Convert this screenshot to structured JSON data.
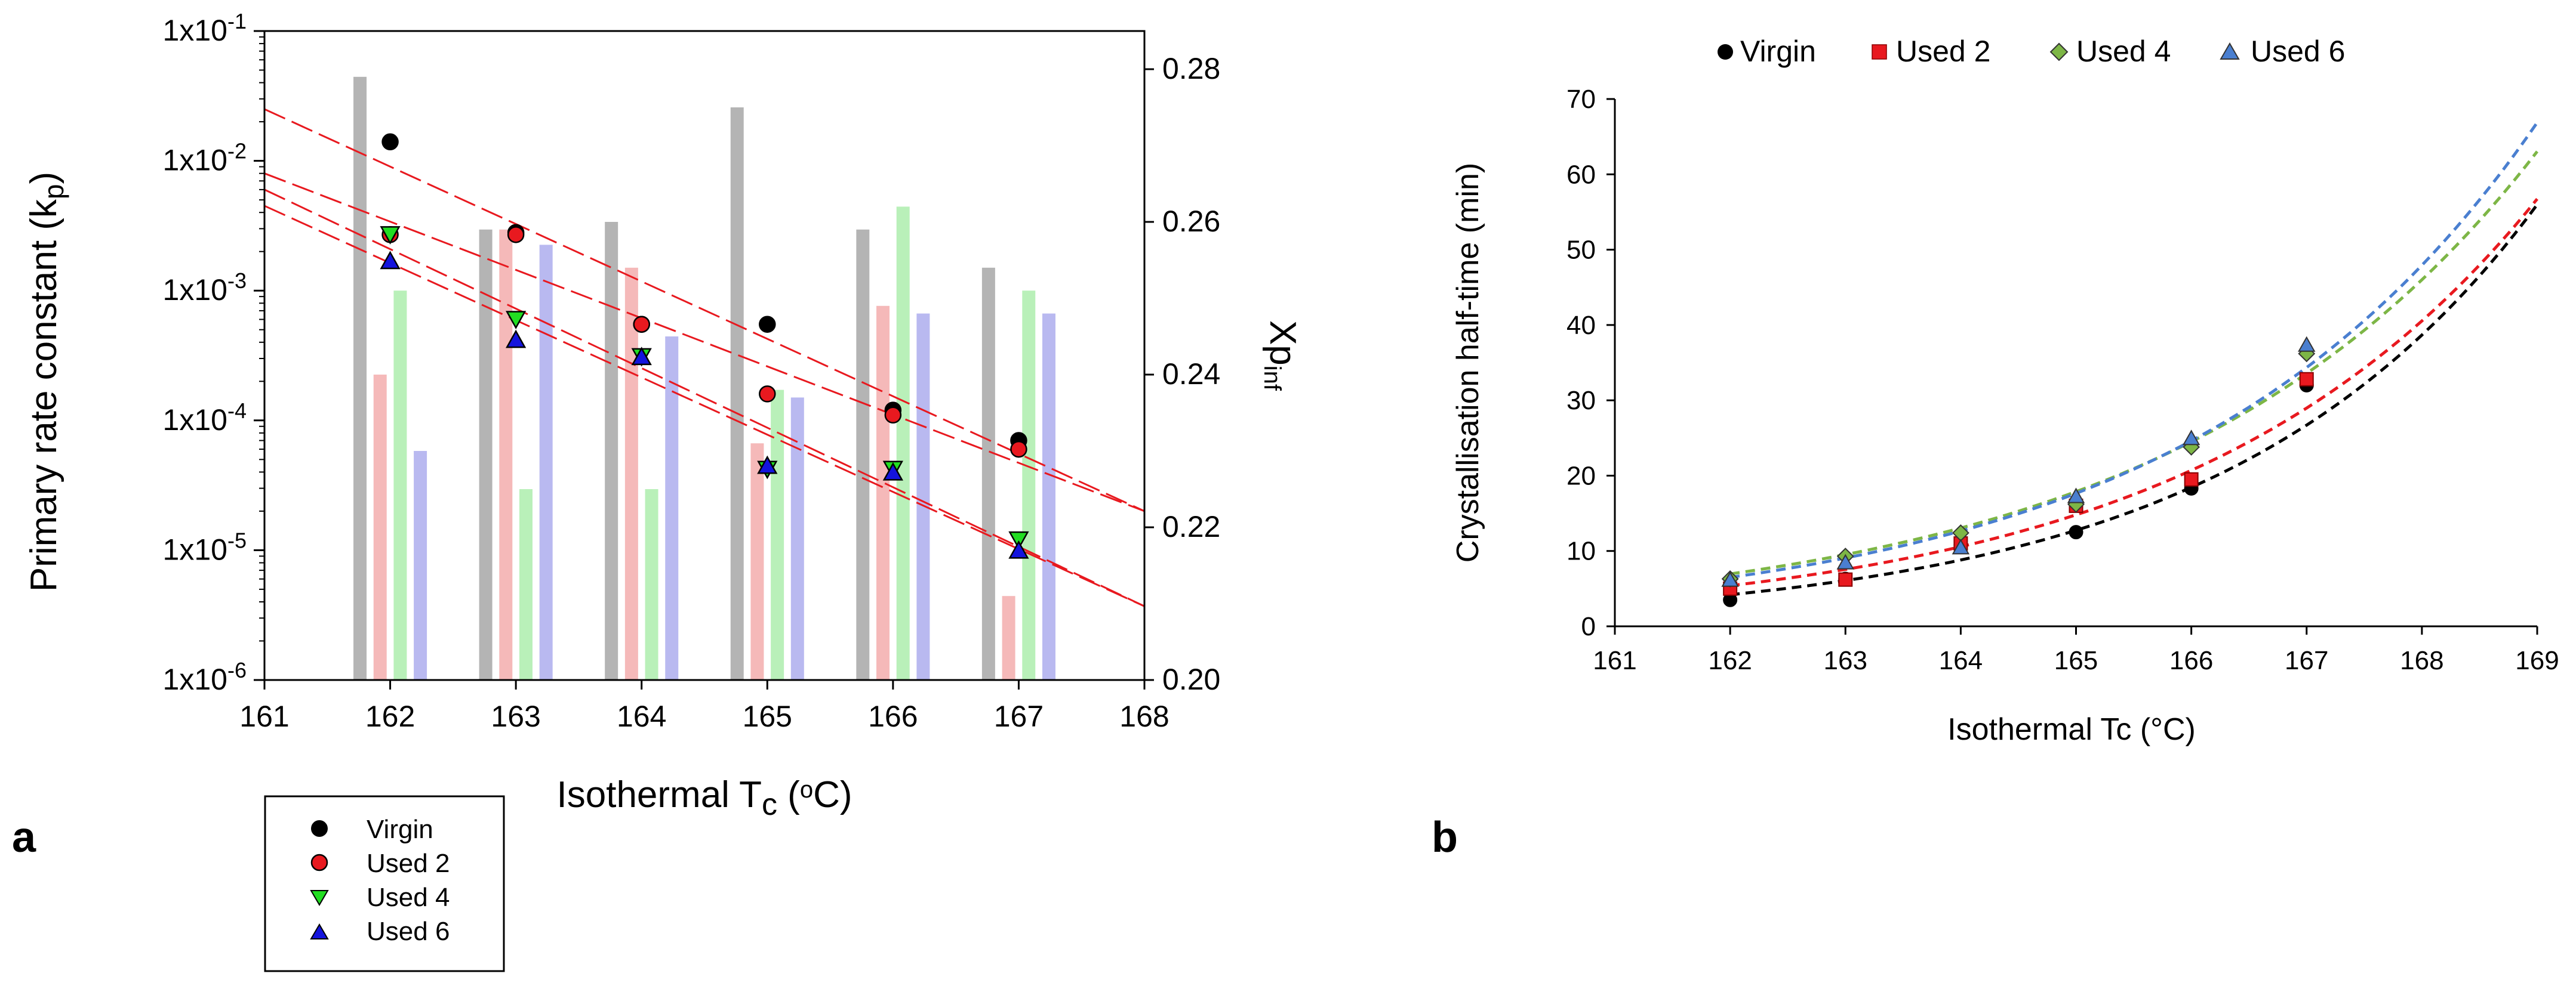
{
  "figure": {
    "panel_a_label": "a",
    "panel_b_label": "b"
  },
  "chart_data": [
    {
      "id": "a",
      "type": "scatter",
      "subtype": "log-scatter with fitted lines and secondary-axis bars",
      "xlabel": "Isothermal T",
      "xlabel_sub": "c",
      "xlabel_suffix": " (",
      "xlabel_unit_deg": "o",
      "xlabel_unit": "C)",
      "ylabel": "Primary rate constant (k",
      "ylabel_sub": "p",
      "ylabel_close": ")",
      "y2label": "Xp",
      "y2label_sub": "inf",
      "xlim": [
        161,
        168
      ],
      "xticks": [
        "161",
        "162",
        "163",
        "164",
        "165",
        "166",
        "167",
        "168"
      ],
      "ylim_log10": [
        -6,
        -1
      ],
      "yticks": [
        {
          "base": "1x10",
          "exp": "-1"
        },
        {
          "base": "1x10",
          "exp": "-2"
        },
        {
          "base": "1x10",
          "exp": "-3"
        },
        {
          "base": "1x10",
          "exp": "-4"
        },
        {
          "base": "1x10",
          "exp": "-5"
        },
        {
          "base": "1x10",
          "exp": "-6"
        }
      ],
      "y2lim": [
        0.2,
        0.285
      ],
      "y2ticks": [
        "0.28",
        "0.26",
        "0.24",
        "0.22",
        "0.20"
      ],
      "x": [
        162,
        163,
        164,
        165,
        166,
        167
      ],
      "series": [
        {
          "name": "Virgin",
          "marker": "circle",
          "color": "#000000",
          "kp": [
            0.014,
            0.0028,
            0.00055,
            0.00055,
            0.00012,
            7e-05
          ]
        },
        {
          "name": "Used 2",
          "marker": "circle",
          "color": "#e8191f",
          "kp": [
            0.0027,
            0.0027,
            0.00055,
            0.00016,
            0.00011,
            6e-05
          ]
        },
        {
          "name": "Used 4",
          "marker": "triangle-down",
          "color": "#22dd22",
          "kp": [
            0.0027,
            0.0006,
            0.00031,
            4.2e-05,
            4.2e-05,
            1.2e-05
          ]
        },
        {
          "name": "Used 6",
          "marker": "triangle-up",
          "color": "#1414dd",
          "kp": [
            0.0017,
            0.00042,
            0.00031,
            4.5e-05,
            4e-05,
            1e-05
          ]
        }
      ],
      "fit_lines": [
        {
          "from": [
            161,
            0.025
          ],
          "to": [
            168,
            2e-05
          ]
        },
        {
          "from": [
            161,
            0.008
          ],
          "to": [
            168,
            2e-05
          ]
        },
        {
          "from": [
            161,
            0.006
          ],
          "to": [
            168,
            3.7e-06
          ]
        },
        {
          "from": [
            161,
            0.0045
          ],
          "to": [
            168,
            3.7e-06
          ]
        }
      ],
      "xp_inf_bars": {
        "Virgin": [
          0.279,
          0.259,
          0.26,
          0.275,
          0.259,
          0.254
        ],
        "Used 2": [
          0.24,
          0.259,
          0.254,
          0.231,
          0.249,
          0.211
        ],
        "Used 4": [
          0.251,
          0.225,
          0.225,
          0.238,
          0.262,
          0.251
        ],
        "Used 6": [
          0.23,
          0.257,
          0.245,
          0.237,
          0.248,
          0.248
        ]
      },
      "bar_colors": {
        "Virgin": "#b4b4b4",
        "Used 2": "#f5b9b9",
        "Used 4": "#b9f0b9",
        "Used 6": "#b9b9f0"
      },
      "line_color": "#e8191f",
      "legend": [
        "Virgin",
        "Used 2",
        "Used 4",
        "Used 6"
      ],
      "legend_position": "below-left"
    },
    {
      "id": "b",
      "type": "scatter",
      "subtype": "scatter with dashed exponential fits",
      "xlabel": "Isothermal Tc (°C)",
      "ylabel": "Crystallisation half-time (min)",
      "xlim": [
        161,
        169
      ],
      "xticks": [
        "161",
        "162",
        "163",
        "164",
        "165",
        "166",
        "167",
        "168",
        "169"
      ],
      "ylim": [
        0,
        70
      ],
      "yticks": [
        "0",
        "10",
        "20",
        "30",
        "40",
        "50",
        "60",
        "70"
      ],
      "x": [
        162,
        163,
        164,
        165,
        166,
        167
      ],
      "series": [
        {
          "name": "Virgin",
          "marker": "circle",
          "color": "#000000",
          "values": [
            3.5,
            6.3,
            10.8,
            12.5,
            18.3,
            32.0
          ]
        },
        {
          "name": "Used 2",
          "marker": "square",
          "color": "#e8191f",
          "values": [
            5.0,
            6.2,
            11.0,
            16.0,
            19.5,
            32.8
          ]
        },
        {
          "name": "Used 4",
          "marker": "diamond",
          "color": "#7db646",
          "values": [
            6.3,
            9.3,
            12.4,
            16.2,
            23.8,
            36.2
          ]
        },
        {
          "name": "Used 6",
          "marker": "triangle-up",
          "color": "#4a7fd0",
          "values": [
            6.2,
            8.5,
            10.5,
            17.3,
            25.0,
            37.4
          ]
        }
      ],
      "fits": [
        {
          "name": "Virgin",
          "color": "#000000",
          "a": 4.2,
          "b": 0.37
        },
        {
          "name": "Used 2",
          "color": "#e8191f",
          "a": 5.4,
          "b": 0.336
        },
        {
          "name": "Used 4",
          "color": "#7db646",
          "a": 6.95,
          "b": 0.315
        },
        {
          "name": "Used 6",
          "color": "#4a7fd0",
          "a": 6.5,
          "b": 0.333
        }
      ],
      "legend": [
        "Virgin",
        "Used 2",
        "Used 4",
        "Used 6"
      ],
      "legend_position": "top"
    }
  ]
}
